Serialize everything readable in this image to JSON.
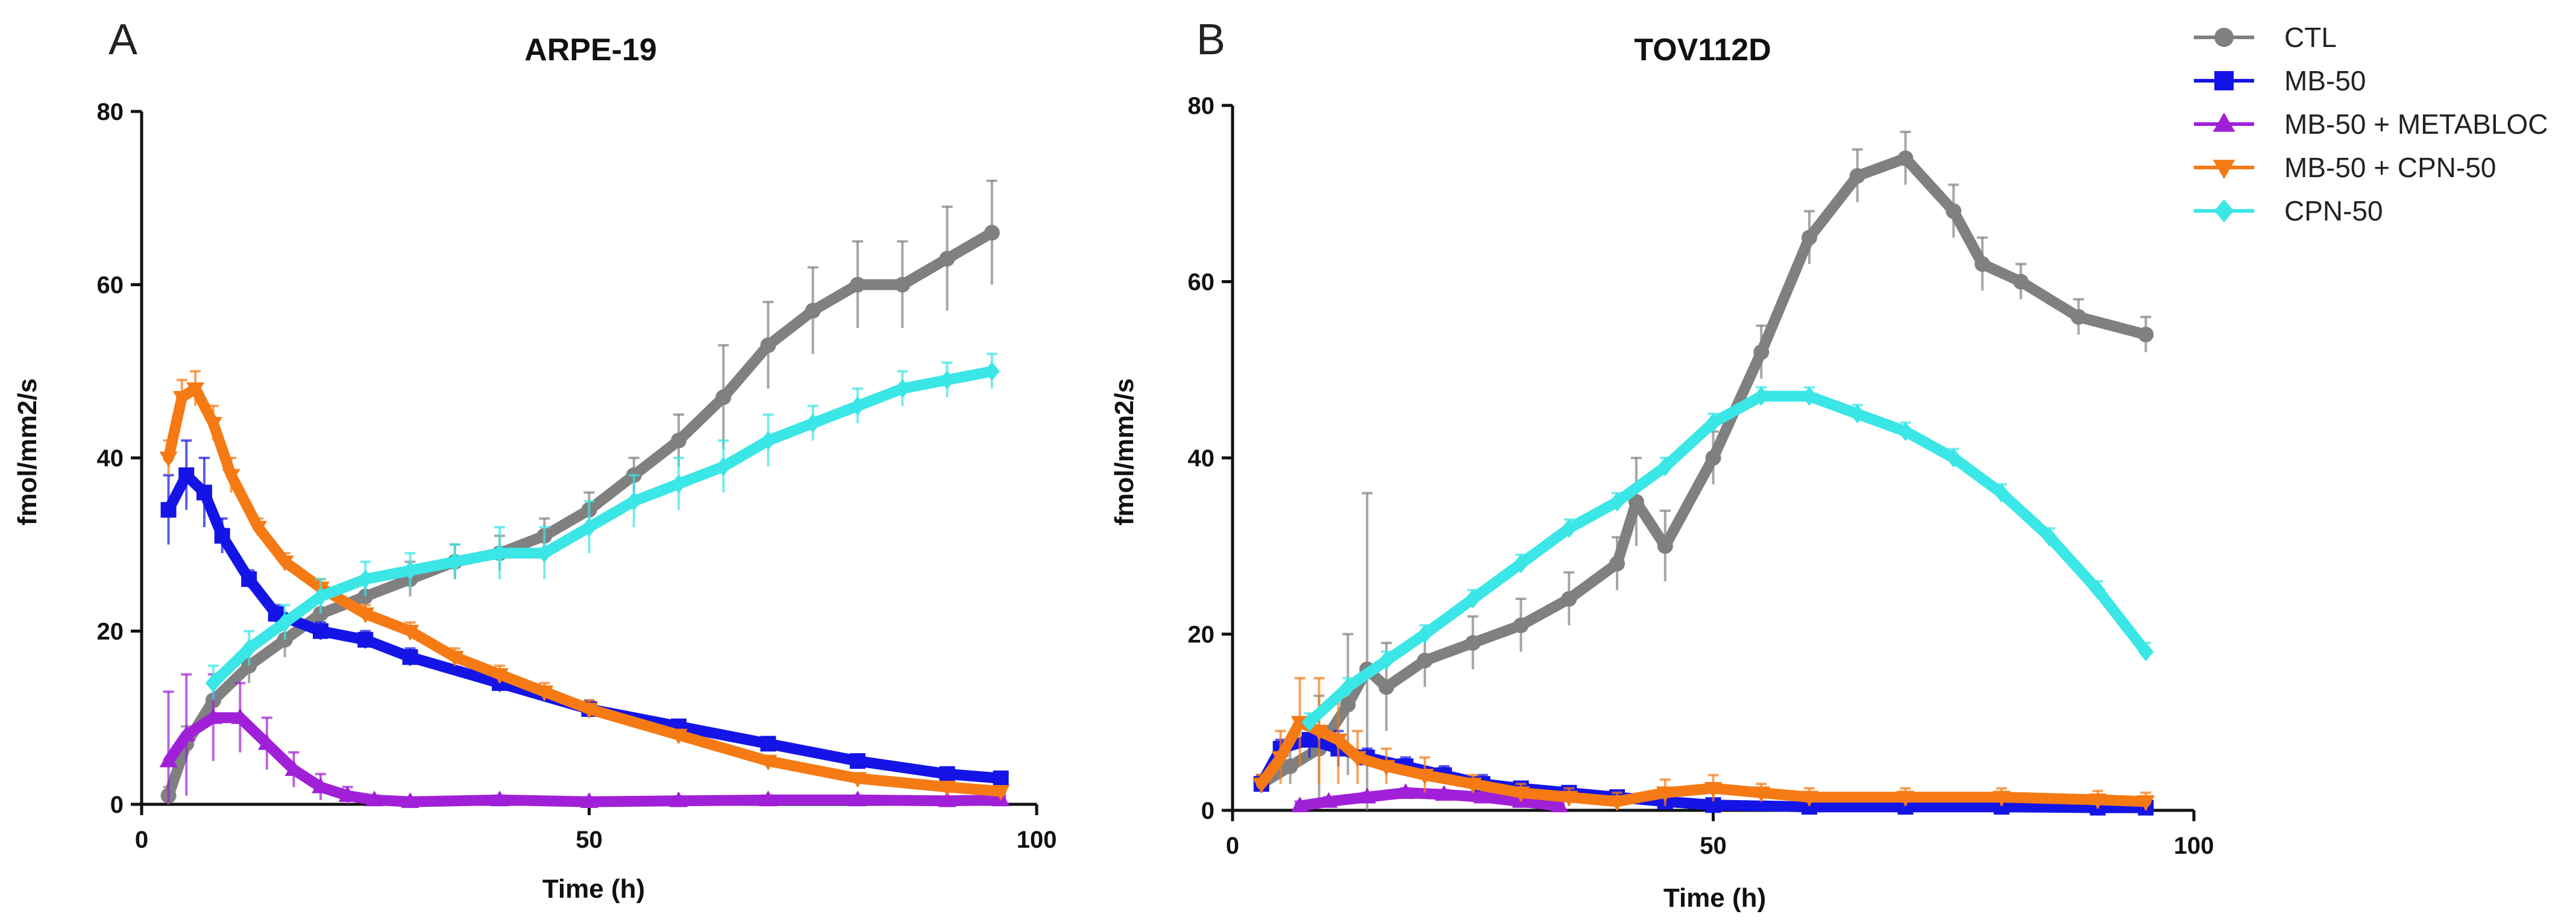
{
  "legend": [
    {
      "name": "CTL",
      "color": "#808080",
      "marker": "circle"
    },
    {
      "name": "MB-50",
      "color": "#1414e6",
      "marker": "square"
    },
    {
      "name": "MB-50 + METABLOC",
      "color": "#a020d8",
      "marker": "triangle-up"
    },
    {
      "name": "MB-50 + CPN-50",
      "color": "#f57a14",
      "marker": "triangle-down"
    },
    {
      "name": "CPN-50",
      "color": "#3ae6e6",
      "marker": "diamond"
    }
  ],
  "chart_data": [
    {
      "panel": "A",
      "type": "line",
      "title": "ARPE-19",
      "xlabel": "Time (h)",
      "ylabel": "fmol/mm2/s",
      "xlim": [
        0,
        100
      ],
      "ylim": [
        0,
        80
      ],
      "xticks": [
        0,
        50,
        100
      ],
      "yticks": [
        0,
        20,
        40,
        60,
        80
      ],
      "series": [
        {
          "name": "CTL",
          "color": "#808080",
          "x": [
            3,
            5,
            8,
            12,
            16,
            20,
            25,
            30,
            35,
            40,
            45,
            50,
            55,
            60,
            65,
            70,
            75,
            80,
            85,
            90,
            95
          ],
          "y": [
            1,
            7,
            12,
            16,
            19,
            22,
            24,
            26,
            28,
            29,
            31,
            34,
            38,
            42,
            47,
            53,
            57,
            60,
            60,
            63,
            66
          ],
          "err": [
            1,
            2,
            2,
            2,
            2,
            2,
            2,
            2,
            2,
            2,
            2,
            2,
            2,
            3,
            6,
            5,
            5,
            5,
            5,
            6,
            6
          ]
        },
        {
          "name": "MB-50",
          "color": "#1414e6",
          "x": [
            3,
            5,
            7,
            9,
            12,
            15,
            20,
            25,
            30,
            40,
            50,
            60,
            70,
            80,
            90,
            96
          ],
          "y": [
            34,
            38,
            36,
            31,
            26,
            22,
            20,
            19,
            17,
            14,
            11,
            9,
            7,
            5,
            3.5,
            3
          ],
          "err": [
            4,
            4,
            4,
            2,
            1,
            1,
            1,
            1,
            1,
            1,
            1,
            0.5,
            0.5,
            0.5,
            0.5,
            0.5
          ]
        },
        {
          "name": "MB-50 + METABLOC",
          "color": "#a020d8",
          "x": [
            3,
            5,
            8,
            11,
            14,
            17,
            20,
            23,
            26,
            30,
            40,
            50,
            60,
            70,
            80,
            90,
            96
          ],
          "y": [
            5,
            8,
            10,
            10,
            7,
            4,
            2,
            1,
            0.5,
            0.3,
            0.5,
            0.3,
            0.4,
            0.5,
            0.5,
            0.4,
            0.5
          ],
          "err": [
            8,
            7,
            5,
            4,
            3,
            2,
            1.5,
            1,
            0.5,
            0.5,
            0.5,
            0.5,
            0.5,
            0.5,
            0.5,
            0.5,
            0.5
          ]
        },
        {
          "name": "MB-50 + CPN-50",
          "color": "#f57a14",
          "x": [
            3,
            4.5,
            6,
            8,
            10,
            13,
            16,
            20,
            25,
            30,
            35,
            40,
            45,
            50,
            60,
            70,
            80,
            90,
            96
          ],
          "y": [
            40,
            47,
            48,
            44,
            38,
            32,
            28,
            25,
            22,
            20,
            17,
            15,
            13,
            11,
            8,
            5,
            3,
            2,
            1.5
          ],
          "err": [
            2,
            2,
            2,
            2,
            2,
            1,
            1,
            1,
            1,
            1,
            1,
            1,
            1,
            1,
            0.5,
            0.5,
            0.5,
            0.5,
            0.5
          ]
        },
        {
          "name": "CPN-50",
          "color": "#3ae6e6",
          "x": [
            8,
            12,
            16,
            20,
            25,
            30,
            35,
            40,
            45,
            50,
            55,
            60,
            65,
            70,
            75,
            80,
            85,
            90,
            95
          ],
          "y": [
            14,
            18,
            21,
            24,
            26,
            27,
            28,
            29,
            29,
            32,
            35,
            37,
            39,
            42,
            44,
            46,
            48,
            49,
            50
          ],
          "err": [
            2,
            2,
            2,
            2,
            2,
            2,
            2,
            3,
            3,
            3,
            3,
            3,
            3,
            3,
            2,
            2,
            2,
            2,
            2
          ]
        }
      ]
    },
    {
      "panel": "B",
      "type": "line",
      "title": "TOV112D",
      "xlabel": "Time (h)",
      "ylabel": "fmol/mm2/s",
      "xlim": [
        0,
        100
      ],
      "ylim": [
        0,
        80
      ],
      "xticks": [
        0,
        50,
        100
      ],
      "yticks": [
        0,
        20,
        40,
        60,
        80
      ],
      "series": [
        {
          "name": "CTL",
          "color": "#808080",
          "x": [
            3,
            6,
            9,
            12,
            14,
            16,
            20,
            25,
            30,
            35,
            40,
            42,
            45,
            50,
            55,
            60,
            65,
            70,
            75,
            78,
            82,
            88,
            95
          ],
          "y": [
            3,
            5,
            7,
            12,
            16,
            14,
            17,
            19,
            21,
            24,
            28,
            35,
            30,
            40,
            52,
            65,
            72,
            74,
            68,
            62,
            60,
            56,
            54
          ],
          "err": [
            1,
            2,
            6,
            8,
            20,
            5,
            3,
            3,
            3,
            3,
            3,
            5,
            4,
            3,
            3,
            3,
            3,
            3,
            3,
            3,
            2,
            2,
            2
          ]
        },
        {
          "name": "MB-50",
          "color": "#1414e6",
          "x": [
            3,
            5,
            8,
            11,
            14,
            18,
            22,
            26,
            30,
            35,
            40,
            45,
            50,
            60,
            70,
            80,
            90,
            95
          ],
          "y": [
            3,
            7,
            8,
            7,
            6,
            5,
            4,
            3,
            2.5,
            2,
            1.5,
            1,
            0.6,
            0.4,
            0.4,
            0.4,
            0.3,
            0.3
          ],
          "err": [
            1,
            1,
            2,
            2,
            1,
            1,
            1,
            1,
            0.5,
            0.5,
            0.5,
            0.5,
            0.5,
            0.3,
            0.3,
            0.3,
            0.3,
            0.3
          ]
        },
        {
          "name": "MB-50 + METABLOC",
          "color": "#a020d8",
          "x": [
            7,
            10,
            14,
            18,
            22,
            26,
            30,
            34
          ],
          "y": [
            0.5,
            1,
            1.5,
            2,
            1.8,
            1.5,
            1,
            0.5
          ],
          "err": [
            0.5,
            0.5,
            0.5,
            0.5,
            0.5,
            0.5,
            0.5,
            0.5
          ]
        },
        {
          "name": "MB-50 + CPN-50",
          "color": "#f57a14",
          "x": [
            3,
            5,
            7,
            9,
            11,
            13,
            16,
            20,
            25,
            30,
            35,
            40,
            45,
            50,
            55,
            60,
            70,
            80,
            90,
            95
          ],
          "y": [
            3,
            6,
            10,
            9,
            8,
            6,
            5,
            4,
            3,
            2,
            1.5,
            1,
            2,
            2.5,
            2,
            1.5,
            1.5,
            1.5,
            1.2,
            1
          ],
          "err": [
            1,
            3,
            5,
            6,
            5,
            3,
            2,
            2,
            1,
            1,
            1,
            1,
            1.5,
            1.5,
            1,
            1,
            1,
            1,
            1,
            1
          ]
        },
        {
          "name": "CPN-50",
          "color": "#3ae6e6",
          "x": [
            8,
            12,
            16,
            20,
            25,
            30,
            35,
            40,
            45,
            50,
            55,
            60,
            65,
            70,
            75,
            80,
            85,
            90,
            95
          ],
          "y": [
            10,
            14,
            17,
            20,
            24,
            28,
            32,
            35,
            39,
            44,
            47,
            47,
            45,
            43,
            40,
            36,
            31,
            25,
            18
          ],
          "err": [
            1,
            1,
            1,
            1,
            1,
            1,
            1,
            1,
            1,
            1,
            1,
            1,
            1,
            1,
            1,
            1,
            1,
            1,
            1
          ]
        }
      ]
    }
  ]
}
